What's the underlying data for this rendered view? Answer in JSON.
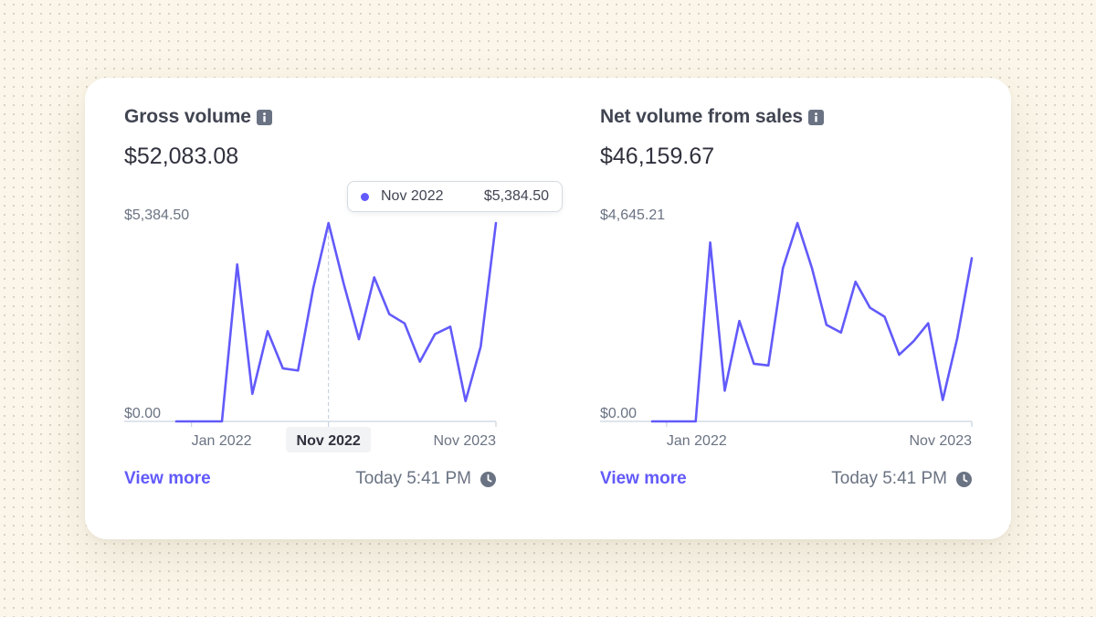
{
  "colors": {
    "accent": "#625afa",
    "axis": "#c9d4e0",
    "hover_line": "#c0c8d2",
    "highlight_bg": "#f2f3f5",
    "text_muted": "#6a7383"
  },
  "panels": [
    {
      "title": "Gross volume",
      "title_icon": "info-icon",
      "value": "$52,083.08",
      "view_more": "View more",
      "updated": "Today 5:41 PM",
      "updated_icon": "clock-icon",
      "tooltip": {
        "label": "Nov 2022",
        "value": "$5,384.50"
      }
    },
    {
      "title": "Net volume from sales",
      "title_icon": "info-icon",
      "value": "$46,159.67",
      "view_more": "View more",
      "updated": "Today 5:41 PM",
      "updated_icon": "clock-icon"
    }
  ],
  "chart_data": [
    {
      "type": "line",
      "y_max_label": "$5,384.50",
      "y_min_label": "$0.00",
      "ylim": [
        0,
        5384.5
      ],
      "x_tick_labels": [
        "Jan 2022",
        "Nov 2022",
        "Nov 2023"
      ],
      "highlighted_tick": "Nov 2022",
      "hover_index": 10,
      "values": [
        0,
        0,
        0,
        0,
        4260,
        750,
        2450,
        1440,
        1380,
        3620,
        5384.5,
        3740,
        2230,
        3910,
        2910,
        2660,
        1620,
        2370,
        2570,
        550,
        2030,
        5384.5
      ],
      "tick_indices": [
        1,
        10,
        21
      ]
    },
    {
      "type": "line",
      "y_max_label": "$4,645.21",
      "y_min_label": "$0.00",
      "ylim": [
        0,
        4645.21
      ],
      "x_tick_labels": [
        "Jan 2022",
        "Nov 2023"
      ],
      "values": [
        0,
        0,
        0,
        0,
        4190,
        720,
        2350,
        1350,
        1310,
        3590,
        4645.21,
        3590,
        2260,
        2080,
        3270,
        2660,
        2450,
        1560,
        1880,
        2300,
        500,
        1950,
        3820
      ],
      "tick_indices": [
        1,
        22
      ]
    }
  ]
}
